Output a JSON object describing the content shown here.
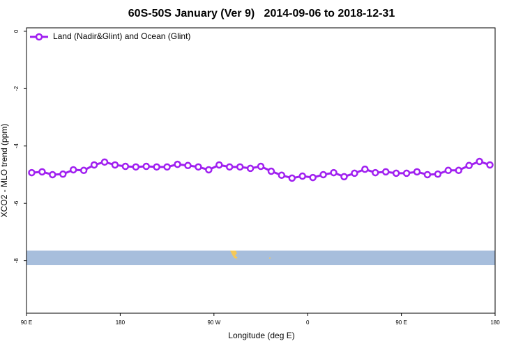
{
  "chart_data": {
    "type": "line",
    "title": "60S-50S January (Ver 9)   2014-09-06 to 2018-12-31",
    "xlabel": "Longitude (deg E)",
    "ylabel": "XCO2 - MLO trend (ppm)",
    "x": [
      95,
      105,
      115,
      125,
      135,
      145,
      155,
      165,
      175,
      185,
      195,
      205,
      215,
      225,
      235,
      245,
      255,
      265,
      275,
      285,
      295,
      305,
      315,
      325,
      335,
      345,
      355,
      365,
      375,
      385,
      395,
      405,
      415,
      425,
      435,
      445,
      455,
      465,
      475,
      485,
      495,
      505,
      515,
      525,
      535
    ],
    "series": [
      {
        "name": "Land (Nadir&Glint) and Ocean (Glint)",
        "color": "#a020f0",
        "values": [
          -4.93,
          -4.9,
          -5.0,
          -4.98,
          -4.83,
          -4.85,
          -4.66,
          -4.56,
          -4.66,
          -4.71,
          -4.73,
          -4.71,
          -4.73,
          -4.73,
          -4.64,
          -4.68,
          -4.73,
          -4.83,
          -4.66,
          -4.73,
          -4.73,
          -4.78,
          -4.71,
          -4.88,
          -5.02,
          -5.12,
          -5.05,
          -5.1,
          -5.0,
          -4.93,
          -5.07,
          -4.95,
          -4.81,
          -4.93,
          -4.9,
          -4.95,
          -4.95,
          -4.9,
          -5.0,
          -4.98,
          -4.85,
          -4.85,
          -4.68,
          -4.54,
          -4.66
        ]
      }
    ],
    "xlim": [
      90,
      540
    ],
    "xticks": [
      {
        "value": 90,
        "label": "90 E"
      },
      180,
      {
        "value": 270,
        "label": "90 W"
      },
      {
        "value": 360,
        "label": "0"
      },
      {
        "value": 450,
        "label": "90 E"
      },
      {
        "value": 540,
        "label": "180"
      }
    ],
    "ylim": [
      -9.83,
      0.12
    ],
    "yticks": [
      0,
      -2,
      -4,
      -6,
      -8
    ],
    "legend": "top-left"
  }
}
